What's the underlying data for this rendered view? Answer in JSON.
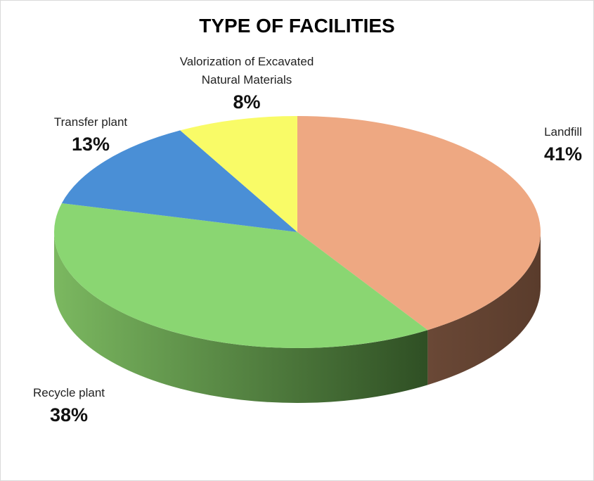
{
  "chart_data": {
    "type": "pie",
    "title": "TYPE OF FACILITIES",
    "slices": [
      {
        "label": "Landfill",
        "value": 41,
        "value_label": "41%",
        "color": "#EEA882"
      },
      {
        "label": "Recycle plant",
        "value": 38,
        "value_label": "38%",
        "color": "#8AD672"
      },
      {
        "label": "Transfer plant",
        "value": 13,
        "value_label": "13%",
        "color": "#4A8FD6"
      },
      {
        "label": "Valorization of Excavated Natural Materials",
        "value": 8,
        "value_label": "8%",
        "color": "#F9FB67"
      }
    ],
    "legend": "none",
    "style": "3d"
  }
}
